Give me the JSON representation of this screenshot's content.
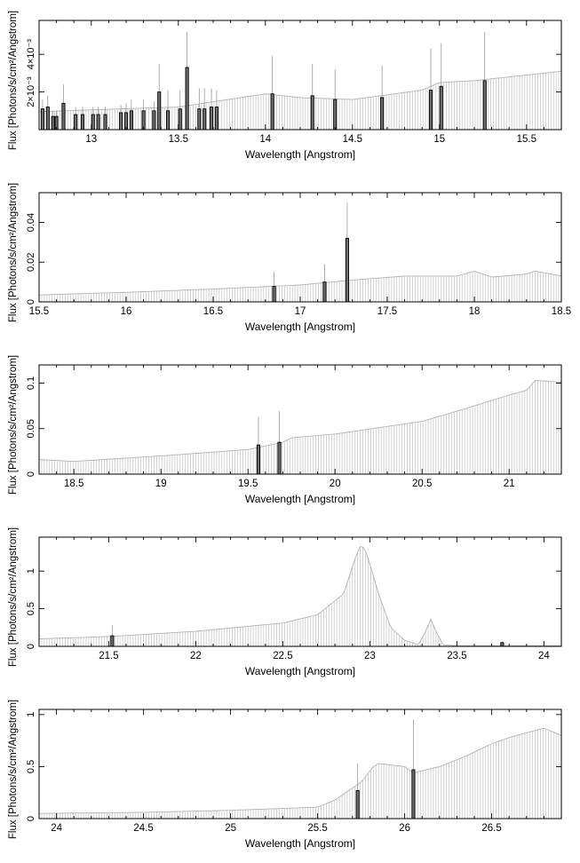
{
  "figure": {
    "line_color": "#000000",
    "model_color": "#c8c8c8",
    "background": "#ffffff"
  },
  "chart_data": [
    {
      "type": "bar",
      "xlabel": "Wavelength [Angstrom]",
      "ylabel": "Flux [Photons/s/cm²/Angstrom]",
      "xlim": [
        12.7,
        15.7
      ],
      "ylim": [
        0,
        0.0058
      ],
      "grid": false,
      "x_ticks": [
        13,
        13.5,
        14,
        14.5,
        15,
        15.5
      ],
      "x_tick_labels": [
        "13",
        "13.5",
        "14",
        "14.5",
        "15",
        "15.5"
      ],
      "y_ticks": [
        0.002,
        0.004
      ],
      "y_tick_labels": [
        "2×10⁻³",
        "4×10⁻³"
      ],
      "continuum": [
        [
          12.7,
          0.00095
        ],
        [
          13.0,
          0.00105
        ],
        [
          13.5,
          0.0012
        ],
        [
          14.0,
          0.0019
        ],
        [
          14.2,
          0.0017
        ],
        [
          14.5,
          0.0016
        ],
        [
          14.9,
          0.0021
        ],
        [
          15.0,
          0.0025
        ],
        [
          15.2,
          0.0026
        ],
        [
          15.5,
          0.0029
        ],
        [
          15.7,
          0.0031
        ]
      ],
      "lines": [
        {
          "x": 12.72,
          "y": 0.0011,
          "err": 0.0016
        },
        {
          "x": 12.75,
          "y": 0.0012,
          "err": 0.0018
        },
        {
          "x": 12.78,
          "y": 0.0007,
          "err": 0.001
        },
        {
          "x": 12.8,
          "y": 0.0007,
          "err": 0.001
        },
        {
          "x": 12.84,
          "y": 0.0014,
          "err": 0.0024
        },
        {
          "x": 12.91,
          "y": 0.0008,
          "err": 0.0012
        },
        {
          "x": 12.95,
          "y": 0.0008,
          "err": 0.0012
        },
        {
          "x": 13.01,
          "y": 0.0008,
          "err": 0.0012
        },
        {
          "x": 13.04,
          "y": 0.0008,
          "err": 0.0012
        },
        {
          "x": 13.08,
          "y": 0.0008,
          "err": 0.0012
        },
        {
          "x": 13.17,
          "y": 0.0009,
          "err": 0.0013
        },
        {
          "x": 13.2,
          "y": 0.0009,
          "err": 0.0014
        },
        {
          "x": 13.23,
          "y": 0.001,
          "err": 0.0016
        },
        {
          "x": 13.3,
          "y": 0.001,
          "err": 0.0016
        },
        {
          "x": 13.36,
          "y": 0.001,
          "err": 0.0015
        },
        {
          "x": 13.39,
          "y": 0.002,
          "err": 0.0035
        },
        {
          "x": 13.44,
          "y": 0.001,
          "err": 0.0021
        },
        {
          "x": 13.51,
          "y": 0.0011,
          "err": 0.0021
        },
        {
          "x": 13.55,
          "y": 0.0033,
          "err": 0.0052
        },
        {
          "x": 13.62,
          "y": 0.0011,
          "err": 0.0022
        },
        {
          "x": 13.65,
          "y": 0.0011,
          "err": 0.0022
        },
        {
          "x": 13.69,
          "y": 0.0012,
          "err": 0.0022
        },
        {
          "x": 13.72,
          "y": 0.0012,
          "err": 0.0021
        },
        {
          "x": 14.04,
          "y": 0.0019,
          "err": 0.0039
        },
        {
          "x": 14.27,
          "y": 0.0018,
          "err": 0.0035
        },
        {
          "x": 14.4,
          "y": 0.0016,
          "err": 0.0032
        },
        {
          "x": 14.67,
          "y": 0.0017,
          "err": 0.0034
        },
        {
          "x": 14.95,
          "y": 0.0021,
          "err": 0.0043
        },
        {
          "x": 15.01,
          "y": 0.0023,
          "err": 0.0046
        },
        {
          "x": 15.26,
          "y": 0.0026,
          "err": 0.0052
        }
      ]
    },
    {
      "type": "bar",
      "xlabel": "Wavelength [Angstrom]",
      "ylabel": "Flux [Photons/s/cm²/Angstrom]",
      "xlim": [
        15.5,
        18.5
      ],
      "ylim": [
        0,
        0.055
      ],
      "grid": false,
      "x_ticks": [
        15.5,
        16,
        16.5,
        17,
        17.5,
        18,
        18.5
      ],
      "x_tick_labels": [
        "15.5",
        "16",
        "16.5",
        "17",
        "17.5",
        "18",
        "18.5"
      ],
      "y_ticks": [
        0,
        0.02,
        0.04
      ],
      "y_tick_labels": [
        "0",
        "0.02",
        "0.04"
      ],
      "continuum": [
        [
          15.5,
          0.0035
        ],
        [
          16.0,
          0.0048
        ],
        [
          16.5,
          0.0065
        ],
        [
          17.0,
          0.0085
        ],
        [
          17.3,
          0.011
        ],
        [
          17.6,
          0.013
        ],
        [
          17.9,
          0.013
        ],
        [
          18.0,
          0.0155
        ],
        [
          18.1,
          0.0125
        ],
        [
          18.3,
          0.014
        ],
        [
          18.35,
          0.0155
        ],
        [
          18.5,
          0.013
        ]
      ],
      "lines": [
        {
          "x": 16.85,
          "y": 0.0078,
          "err": 0.015
        },
        {
          "x": 17.14,
          "y": 0.01,
          "err": 0.019
        },
        {
          "x": 17.27,
          "y": 0.032,
          "err": 0.05
        }
      ]
    },
    {
      "type": "bar",
      "xlabel": "Wavelength [Angstrom]",
      "ylabel": "Flux [Photons/s/cm²/Angstrom]",
      "xlim": [
        18.3,
        21.3
      ],
      "ylim": [
        0,
        0.12
      ],
      "grid": false,
      "x_ticks": [
        18.5,
        19,
        19.5,
        20,
        20.5,
        21
      ],
      "x_tick_labels": [
        "18.5",
        "19",
        "19.5",
        "20",
        "20.5",
        "21"
      ],
      "y_ticks": [
        0,
        0.05,
        0.1
      ],
      "y_tick_labels": [
        "0",
        "0.05",
        "0.1"
      ],
      "continuum": [
        [
          18.3,
          0.016
        ],
        [
          18.5,
          0.014
        ],
        [
          19.0,
          0.02
        ],
        [
          19.5,
          0.027
        ],
        [
          19.7,
          0.035
        ],
        [
          19.75,
          0.04
        ],
        [
          20.0,
          0.044
        ],
        [
          20.5,
          0.058
        ],
        [
          20.75,
          0.072
        ],
        [
          21.0,
          0.087
        ],
        [
          21.1,
          0.092
        ],
        [
          21.15,
          0.103
        ],
        [
          21.3,
          0.101
        ]
      ],
      "lines": [
        {
          "x": 19.56,
          "y": 0.032,
          "err": 0.063
        },
        {
          "x": 19.68,
          "y": 0.035,
          "err": 0.069
        }
      ]
    },
    {
      "type": "bar",
      "xlabel": "Wavelength [Angstrom]",
      "ylabel": "Flux [Photons/s/cm²/Angstrom]",
      "xlim": [
        21.1,
        24.1
      ],
      "ylim": [
        0,
        1.45
      ],
      "grid": false,
      "x_ticks": [
        21.5,
        22,
        22.5,
        23,
        23.5,
        24
      ],
      "x_tick_labels": [
        "21.5",
        "22",
        "22.5",
        "23",
        "23.5",
        "24"
      ],
      "y_ticks": [
        0,
        0.5,
        1
      ],
      "y_tick_labels": [
        "0",
        "0.5",
        "1"
      ],
      "continuum": [
        [
          21.1,
          0.1
        ],
        [
          21.5,
          0.13
        ],
        [
          22.0,
          0.2
        ],
        [
          22.5,
          0.31
        ],
        [
          22.7,
          0.42
        ],
        [
          22.85,
          0.7
        ],
        [
          22.92,
          1.2
        ],
        [
          22.95,
          1.35
        ],
        [
          22.98,
          1.25
        ],
        [
          23.05,
          0.7
        ],
        [
          23.12,
          0.25
        ],
        [
          23.2,
          0.08
        ],
        [
          23.28,
          0.02
        ],
        [
          23.32,
          0.2
        ],
        [
          23.35,
          0.36
        ],
        [
          23.38,
          0.2
        ],
        [
          23.42,
          0.02
        ],
        [
          23.5,
          0.01
        ],
        [
          24.1,
          0.01
        ]
      ],
      "lines": [
        {
          "x": 21.52,
          "y": 0.14,
          "err": 0.28
        },
        {
          "x": 23.76,
          "y": 0.05,
          "err": 0.06
        }
      ]
    },
    {
      "type": "bar",
      "xlabel": "Wavelength [Angstrom]",
      "ylabel": "Flux [Photons/s/cm²/Angstrom]",
      "xlim": [
        23.9,
        26.9
      ],
      "ylim": [
        0,
        1.05
      ],
      "grid": false,
      "x_ticks": [
        24,
        24.5,
        25,
        25.5,
        26,
        26.5
      ],
      "x_tick_labels": [
        "24",
        "24.5",
        "25",
        "25.5",
        "26",
        "26.5"
      ],
      "y_ticks": [
        0,
        0.5,
        1
      ],
      "y_tick_labels": [
        "0",
        "0.5",
        "1"
      ],
      "continuum": [
        [
          23.9,
          0.05
        ],
        [
          24.5,
          0.06
        ],
        [
          25.0,
          0.08
        ],
        [
          25.5,
          0.11
        ],
        [
          25.6,
          0.18
        ],
        [
          25.75,
          0.35
        ],
        [
          25.82,
          0.5
        ],
        [
          25.85,
          0.53
        ],
        [
          26.0,
          0.5
        ],
        [
          26.05,
          0.44
        ],
        [
          26.2,
          0.5
        ],
        [
          26.35,
          0.6
        ],
        [
          26.5,
          0.72
        ],
        [
          26.6,
          0.78
        ],
        [
          26.8,
          0.87
        ],
        [
          26.9,
          0.8
        ]
      ],
      "lines": [
        {
          "x": 25.73,
          "y": 0.27,
          "err": 0.53
        },
        {
          "x": 26.05,
          "y": 0.47,
          "err": 0.95
        }
      ]
    }
  ]
}
